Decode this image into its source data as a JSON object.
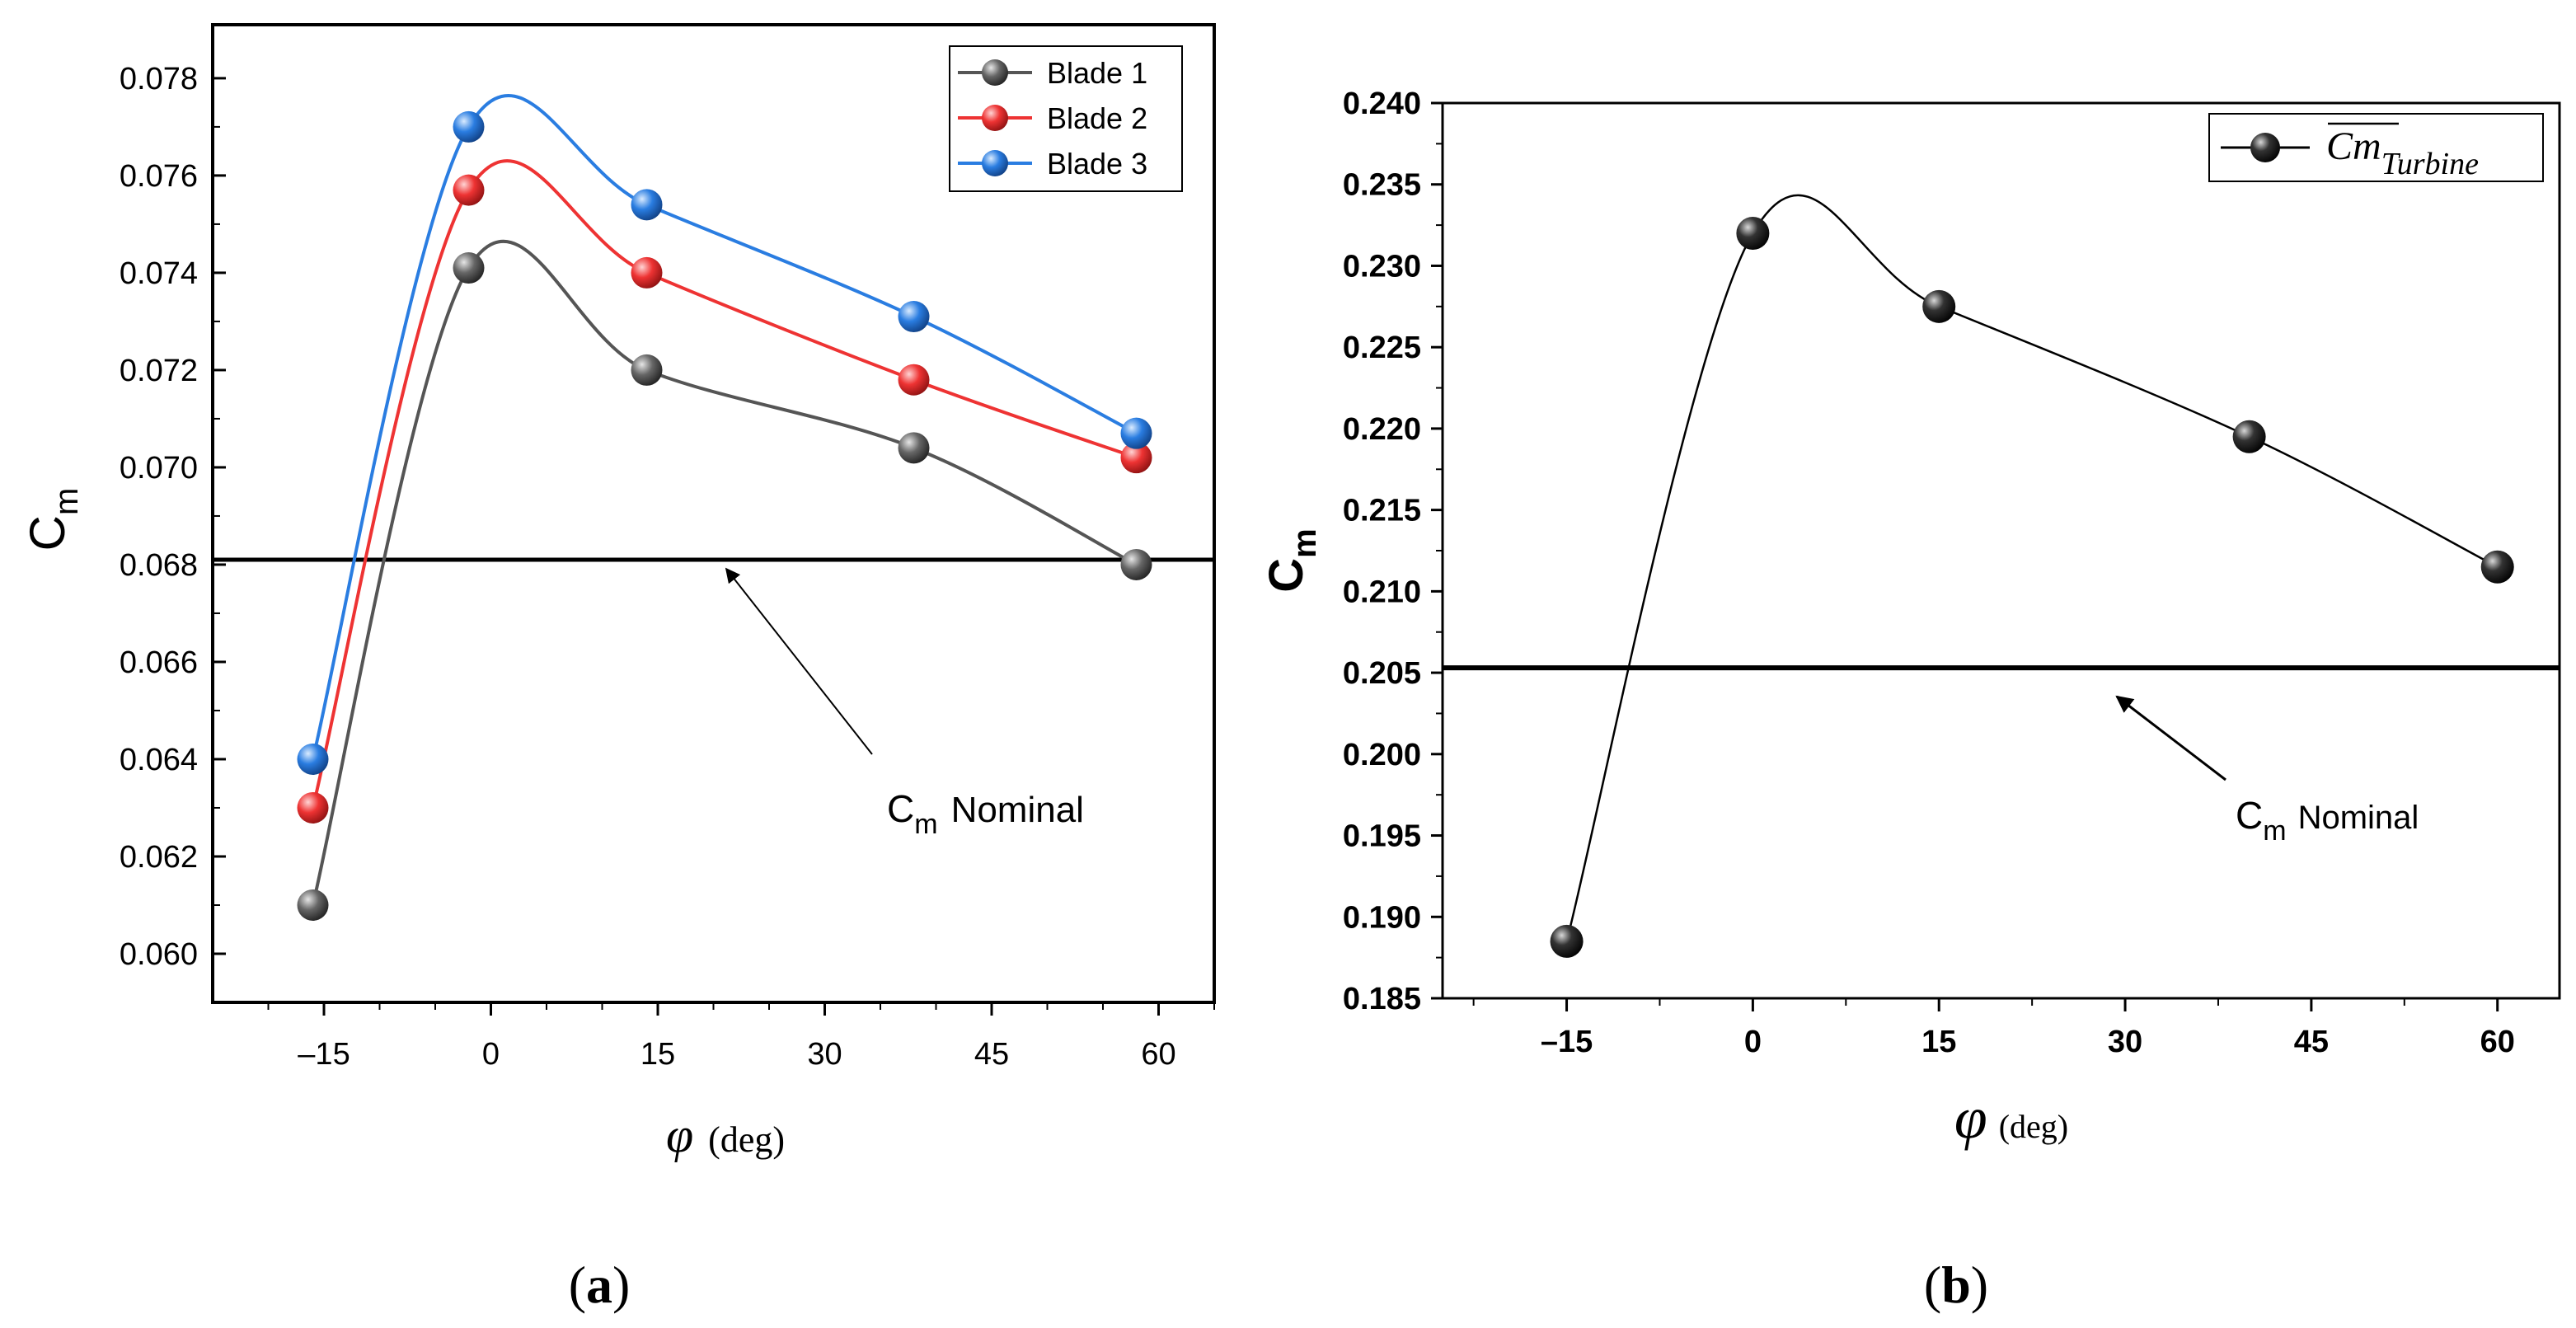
{
  "chart_data": [
    {
      "type": "line",
      "panel_label": "(a)",
      "panel_letter": "a",
      "x": [
        -16,
        -2,
        14,
        38,
        58
      ],
      "series": [
        {
          "name": "Blade 1",
          "color": "#555555",
          "values": [
            0.061,
            0.0741,
            0.072,
            0.0704,
            0.068
          ]
        },
        {
          "name": "Blade 2",
          "color": "#ee3333",
          "values": [
            0.063,
            0.0757,
            0.074,
            0.0718,
            0.0702
          ]
        },
        {
          "name": "Blade 3",
          "color": "#2a7de1",
          "values": [
            0.064,
            0.077,
            0.0754,
            0.0731,
            0.0707
          ]
        }
      ],
      "ylabel": {
        "main": "C",
        "sub": "m"
      },
      "xlabel": {
        "symbol": "φ",
        "unit": "(deg)"
      },
      "xticks": [
        -15,
        0,
        15,
        30,
        45,
        60
      ],
      "xtick_labels": [
        "–15",
        "0",
        "15",
        "30",
        "45",
        "60"
      ],
      "yticks": [
        0.06,
        0.062,
        0.064,
        0.066,
        0.068,
        0.07,
        0.072,
        0.074,
        0.076,
        0.078
      ],
      "ytick_labels": [
        "0.060",
        "0.062",
        "0.064",
        "0.066",
        "0.068",
        "0.070",
        "0.072",
        "0.074",
        "0.076",
        "0.078"
      ],
      "xlim": [
        -25,
        65
      ],
      "ylim": [
        0.059,
        0.0791
      ],
      "reference_line": {
        "value": 0.0681,
        "label_main": "C",
        "label_sub": "m",
        "label_suffix": "Nominal"
      },
      "legend": "top-right"
    },
    {
      "type": "line",
      "panel_label": "(b)",
      "panel_letter": "b",
      "x": [
        -15,
        0,
        15,
        40,
        60
      ],
      "series": [
        {
          "name": "Cm Turbine",
          "legend_main": "Cm",
          "legend_sub": "Turbine",
          "color": "#000000",
          "values": [
            0.1885,
            0.232,
            0.2275,
            0.2195,
            0.2115
          ]
        }
      ],
      "ylabel": {
        "main": "C",
        "sub": "m"
      },
      "xlabel": {
        "symbol": "φ",
        "unit": "(deg)"
      },
      "xticks": [
        -15,
        0,
        15,
        30,
        45,
        60
      ],
      "xtick_labels": [
        "–15",
        "0",
        "15",
        "30",
        "45",
        "60"
      ],
      "yticks": [
        0.185,
        0.19,
        0.195,
        0.2,
        0.205,
        0.21,
        0.215,
        0.22,
        0.225,
        0.23,
        0.235,
        0.24
      ],
      "ytick_labels": [
        "0.185",
        "0.190",
        "0.195",
        "0.200",
        "0.205",
        "0.210",
        "0.215",
        "0.220",
        "0.225",
        "0.230",
        "0.235",
        "0.240"
      ],
      "xlim": [
        -25,
        65
      ],
      "ylim": [
        0.185,
        0.24
      ],
      "reference_line": {
        "value": 0.2053,
        "label_main": "C",
        "label_sub": "m",
        "label_suffix": "Nominal"
      },
      "legend": "top-right"
    }
  ]
}
